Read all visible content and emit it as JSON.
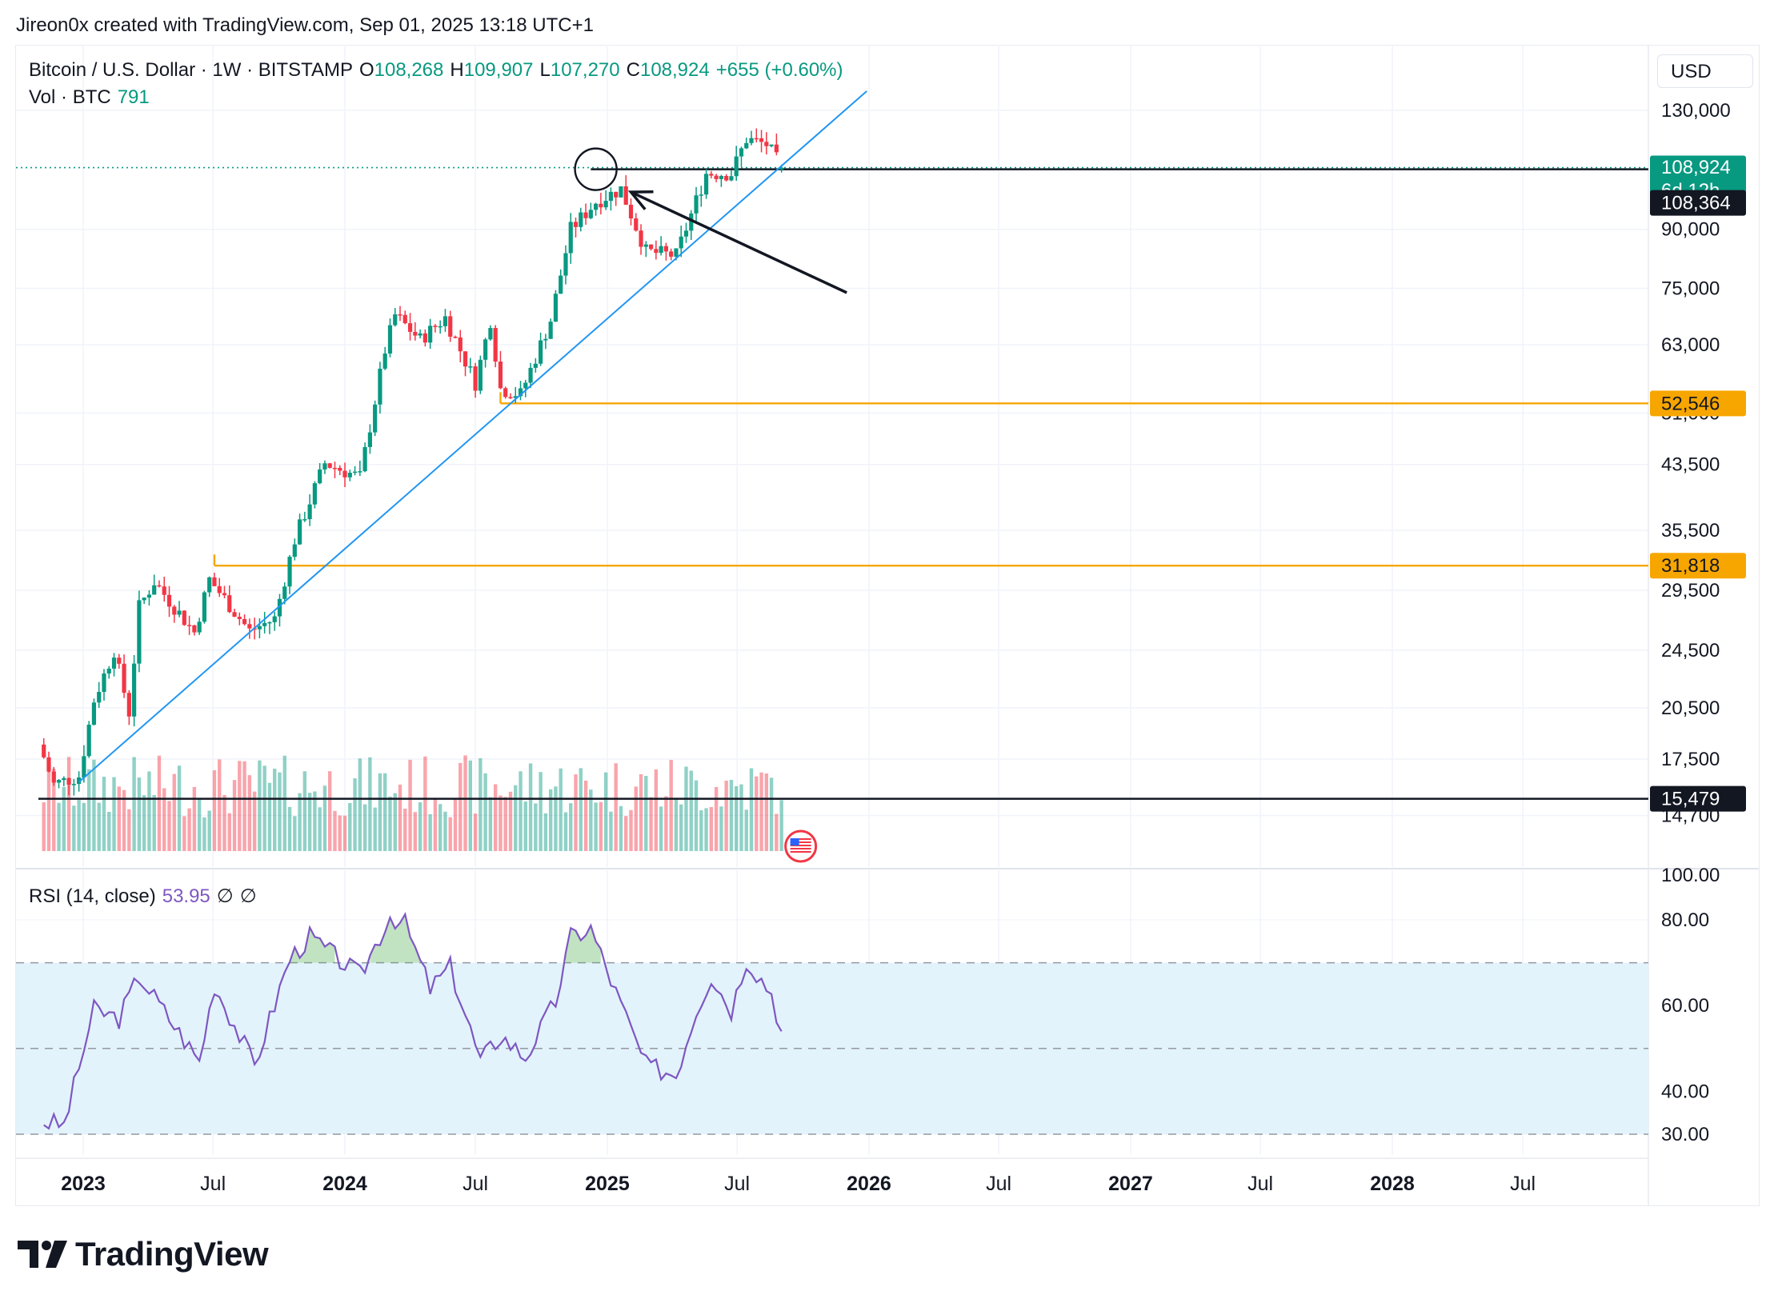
{
  "header": {
    "attribution": "Jireon0x created with TradingView.com, Sep 01, 2025 13:18 UTC+1"
  },
  "legend": {
    "symbol": "Bitcoin / U.S. Dollar · 1W · BITSTAMP",
    "open_label": "O",
    "open": "108,268",
    "high_label": "H",
    "high": "109,907",
    "low_label": "L",
    "low": "107,270",
    "close_label": "C",
    "close": "108,924",
    "change": "+655 (+0.60%)",
    "volume_label": "Vol · BTC",
    "volume": "791",
    "rsi_label": "RSI (14, close)",
    "rsi_value": "53.95",
    "rsi_extra_1": "∅",
    "rsi_extra_2": "∅"
  },
  "currency_button": "USD",
  "price_badges": {
    "last": "108,924",
    "countdown": "6d 12h",
    "line_1": "108,364",
    "line_2": "52,546",
    "line_3": "31,818",
    "line_4": "15,479"
  },
  "logo_text": "TradingView",
  "colors": {
    "up": "#089981",
    "down": "#f23645",
    "trendline": "#2196f3",
    "support": "#f7a600",
    "rsi": "#7e57c2",
    "rsi_band": "#e3f3fb"
  },
  "chart_data": [
    {
      "type": "candlestick",
      "title": "Bitcoin / U.S. Dollar · 1W · BITSTAMP",
      "y_scale": "log",
      "y_ticks": [
        "130,000",
        "90,000",
        "75,000",
        "63,000",
        "51,000",
        "43,500",
        "35,500",
        "29,500",
        "24,500",
        "20,500",
        "17,500",
        "14,700",
        "100.00"
      ],
      "x_ticks": [
        "2023",
        "Jul",
        "2024",
        "Jul",
        "2025",
        "Jul",
        "2026",
        "Jul",
        "2027",
        "Jul",
        "2028",
        "Jul"
      ],
      "anchor_prices": [
        {
          "date": "2022-11-07",
          "price": 17600
        },
        {
          "date": "2022-11-21",
          "price": 16200
        },
        {
          "date": "2022-12-26",
          "price": 16600
        },
        {
          "date": "2023-01-16",
          "price": 21000
        },
        {
          "date": "2023-02-13",
          "price": 24500
        },
        {
          "date": "2023-03-06",
          "price": 20200
        },
        {
          "date": "2023-03-20",
          "price": 28000
        },
        {
          "date": "2023-04-10",
          "price": 30300
        },
        {
          "date": "2023-06-05",
          "price": 25900
        },
        {
          "date": "2023-06-26",
          "price": 30500
        },
        {
          "date": "2023-08-21",
          "price": 26000
        },
        {
          "date": "2023-09-25",
          "price": 27000
        },
        {
          "date": "2023-10-23",
          "price": 34500
        },
        {
          "date": "2023-12-04",
          "price": 43700
        },
        {
          "date": "2024-01-22",
          "price": 41800
        },
        {
          "date": "2024-02-26",
          "price": 62000
        },
        {
          "date": "2024-03-11",
          "price": 69000
        },
        {
          "date": "2024-04-15",
          "price": 64000
        },
        {
          "date": "2024-05-20",
          "price": 68500
        },
        {
          "date": "2024-07-01",
          "price": 56000
        },
        {
          "date": "2024-07-22",
          "price": 68000
        },
        {
          "date": "2024-08-05",
          "price": 55000
        },
        {
          "date": "2024-09-02",
          "price": 54000
        },
        {
          "date": "2024-10-14",
          "price": 68000
        },
        {
          "date": "2024-11-11",
          "price": 90000
        },
        {
          "date": "2024-12-16",
          "price": 98000
        },
        {
          "date": "2025-01-20",
          "price": 102000
        },
        {
          "date": "2025-02-24",
          "price": 84000
        },
        {
          "date": "2025-04-07",
          "price": 83000
        },
        {
          "date": "2025-05-19",
          "price": 107000
        },
        {
          "date": "2025-06-23",
          "price": 107000
        },
        {
          "date": "2025-07-14",
          "price": 119000
        },
        {
          "date": "2025-08-11",
          "price": 117000
        },
        {
          "date": "2025-09-01",
          "price": 108924
        }
      ],
      "horizontal_levels": [
        {
          "label": "108,364",
          "price": 108364
        },
        {
          "label": "52,546",
          "price": 52546
        },
        {
          "label": "31,818",
          "price": 31818
        },
        {
          "label": "15,479",
          "price": 15479
        }
      ],
      "trendline": [
        {
          "date": "2022-12-26",
          "price": 16300
        },
        {
          "date": "2025-12-29",
          "price": 138000
        }
      ]
    },
    {
      "type": "line",
      "title": "RSI (14, close)",
      "y_ticks": [
        "80.00",
        "60.00",
        "40.00",
        "30.00"
      ],
      "band": [
        30,
        70
      ],
      "mid_level": 50,
      "ylim": [
        24,
        84
      ],
      "anchor_values": [
        {
          "date": "2022-11-07",
          "value": 33
        },
        {
          "date": "2022-12-05",
          "value": 32
        },
        {
          "date": "2023-01-16",
          "value": 59
        },
        {
          "date": "2023-02-20",
          "value": 57
        },
        {
          "date": "2023-03-20",
          "value": 67
        },
        {
          "date": "2023-06-12",
          "value": 47
        },
        {
          "date": "2023-07-03",
          "value": 65
        },
        {
          "date": "2023-08-28",
          "value": 46
        },
        {
          "date": "2023-10-16",
          "value": 71
        },
        {
          "date": "2023-11-13",
          "value": 76
        },
        {
          "date": "2024-01-22",
          "value": 67
        },
        {
          "date": "2024-03-04",
          "value": 81
        },
        {
          "date": "2024-03-25",
          "value": 79
        },
        {
          "date": "2024-04-29",
          "value": 64
        },
        {
          "date": "2024-05-27",
          "value": 69
        },
        {
          "date": "2024-07-08",
          "value": 47
        },
        {
          "date": "2024-08-05",
          "value": 53
        },
        {
          "date": "2024-09-09",
          "value": 48
        },
        {
          "date": "2024-10-21",
          "value": 61
        },
        {
          "date": "2024-11-11",
          "value": 76
        },
        {
          "date": "2024-12-09",
          "value": 78
        },
        {
          "date": "2025-01-13",
          "value": 63
        },
        {
          "date": "2025-02-24",
          "value": 46
        },
        {
          "date": "2025-04-07",
          "value": 44
        },
        {
          "date": "2025-05-05",
          "value": 59
        },
        {
          "date": "2025-05-26",
          "value": 67
        },
        {
          "date": "2025-06-23",
          "value": 59
        },
        {
          "date": "2025-07-14",
          "value": 71
        },
        {
          "date": "2025-08-18",
          "value": 63
        },
        {
          "date": "2025-09-01",
          "value": 54
        }
      ]
    }
  ]
}
